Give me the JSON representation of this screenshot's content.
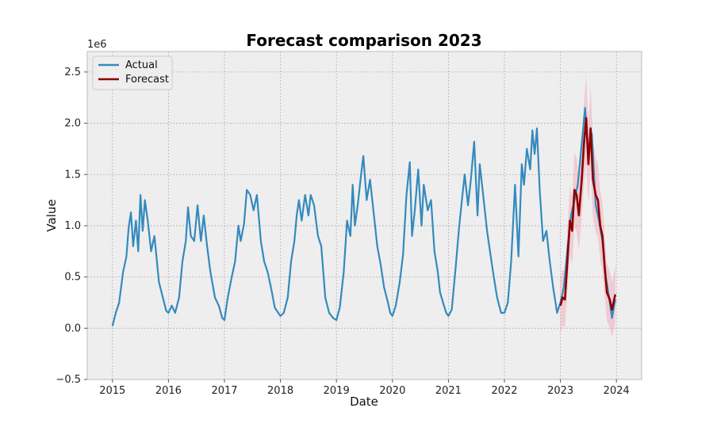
{
  "chart_data": {
    "type": "line",
    "title": "Forecast comparison 2023",
    "xlabel": "Date",
    "ylabel": "Value",
    "y_scale_label": "1e6",
    "xlim": [
      2014.55,
      2024.45
    ],
    "ylim": [
      -0.5,
      2.7
    ],
    "x_ticks": [
      2015,
      2016,
      2017,
      2018,
      2019,
      2020,
      2021,
      2022,
      2023,
      2024
    ],
    "x_tick_labels": [
      "2015",
      "2016",
      "2017",
      "2018",
      "2019",
      "2020",
      "2021",
      "2022",
      "2023",
      "2024"
    ],
    "y_ticks": [
      -0.5,
      0.0,
      0.5,
      1.0,
      1.5,
      2.0,
      2.5
    ],
    "y_tick_labels": [
      "−0.5",
      "0.0",
      "0.5",
      "1.0",
      "1.5",
      "2.0",
      "2.5"
    ],
    "grid": true,
    "legend_position": "top-left",
    "colors": {
      "actual": "#348ABD",
      "forecast": "#8B0000",
      "band": "#F4A0B4",
      "plot_bg": "#EEEEEE",
      "grid": "#B2B2B2"
    },
    "series": [
      {
        "name": "Actual",
        "points": [
          [
            2015.0,
            0.02
          ],
          [
            2015.06,
            0.15
          ],
          [
            2015.12,
            0.25
          ],
          [
            2015.19,
            0.55
          ],
          [
            2015.25,
            0.7
          ],
          [
            2015.29,
            0.98
          ],
          [
            2015.33,
            1.13
          ],
          [
            2015.37,
            0.8
          ],
          [
            2015.42,
            1.05
          ],
          [
            2015.46,
            0.75
          ],
          [
            2015.5,
            1.3
          ],
          [
            2015.54,
            0.95
          ],
          [
            2015.58,
            1.25
          ],
          [
            2015.63,
            1.05
          ],
          [
            2015.69,
            0.75
          ],
          [
            2015.75,
            0.9
          ],
          [
            2015.83,
            0.45
          ],
          [
            2015.9,
            0.3
          ],
          [
            2015.96,
            0.17
          ],
          [
            2016.0,
            0.15
          ],
          [
            2016.06,
            0.22
          ],
          [
            2016.12,
            0.15
          ],
          [
            2016.19,
            0.3
          ],
          [
            2016.25,
            0.65
          ],
          [
            2016.31,
            0.85
          ],
          [
            2016.35,
            1.18
          ],
          [
            2016.4,
            0.9
          ],
          [
            2016.46,
            0.85
          ],
          [
            2016.52,
            1.2
          ],
          [
            2016.58,
            0.85
          ],
          [
            2016.63,
            1.1
          ],
          [
            2016.69,
            0.8
          ],
          [
            2016.75,
            0.55
          ],
          [
            2016.83,
            0.3
          ],
          [
            2016.9,
            0.22
          ],
          [
            2016.96,
            0.1
          ],
          [
            2017.0,
            0.08
          ],
          [
            2017.06,
            0.3
          ],
          [
            2017.13,
            0.5
          ],
          [
            2017.19,
            0.65
          ],
          [
            2017.25,
            1.0
          ],
          [
            2017.29,
            0.85
          ],
          [
            2017.35,
            1.02
          ],
          [
            2017.4,
            1.35
          ],
          [
            2017.46,
            1.3
          ],
          [
            2017.52,
            1.15
          ],
          [
            2017.58,
            1.3
          ],
          [
            2017.65,
            0.85
          ],
          [
            2017.71,
            0.65
          ],
          [
            2017.77,
            0.55
          ],
          [
            2017.83,
            0.4
          ],
          [
            2017.9,
            0.2
          ],
          [
            2017.96,
            0.15
          ],
          [
            2018.0,
            0.12
          ],
          [
            2018.06,
            0.15
          ],
          [
            2018.13,
            0.3
          ],
          [
            2018.19,
            0.65
          ],
          [
            2018.25,
            0.85
          ],
          [
            2018.29,
            1.1
          ],
          [
            2018.33,
            1.25
          ],
          [
            2018.38,
            1.05
          ],
          [
            2018.44,
            1.3
          ],
          [
            2018.5,
            1.1
          ],
          [
            2018.54,
            1.3
          ],
          [
            2018.6,
            1.2
          ],
          [
            2018.67,
            0.9
          ],
          [
            2018.73,
            0.8
          ],
          [
            2018.8,
            0.3
          ],
          [
            2018.87,
            0.15
          ],
          [
            2018.94,
            0.1
          ],
          [
            2019.0,
            0.08
          ],
          [
            2019.06,
            0.2
          ],
          [
            2019.13,
            0.55
          ],
          [
            2019.19,
            1.05
          ],
          [
            2019.25,
            0.9
          ],
          [
            2019.29,
            1.4
          ],
          [
            2019.33,
            1.0
          ],
          [
            2019.38,
            1.2
          ],
          [
            2019.44,
            1.5
          ],
          [
            2019.48,
            1.68
          ],
          [
            2019.54,
            1.25
          ],
          [
            2019.6,
            1.45
          ],
          [
            2019.67,
            1.1
          ],
          [
            2019.73,
            0.8
          ],
          [
            2019.79,
            0.62
          ],
          [
            2019.85,
            0.4
          ],
          [
            2019.92,
            0.25
          ],
          [
            2019.96,
            0.15
          ],
          [
            2020.0,
            0.12
          ],
          [
            2020.06,
            0.22
          ],
          [
            2020.13,
            0.45
          ],
          [
            2020.19,
            0.72
          ],
          [
            2020.25,
            1.3
          ],
          [
            2020.31,
            1.62
          ],
          [
            2020.35,
            0.9
          ],
          [
            2020.4,
            1.15
          ],
          [
            2020.46,
            1.55
          ],
          [
            2020.52,
            1.0
          ],
          [
            2020.56,
            1.4
          ],
          [
            2020.63,
            1.15
          ],
          [
            2020.69,
            1.25
          ],
          [
            2020.75,
            0.75
          ],
          [
            2020.81,
            0.55
          ],
          [
            2020.85,
            0.35
          ],
          [
            2020.92,
            0.22
          ],
          [
            2020.96,
            0.15
          ],
          [
            2021.0,
            0.12
          ],
          [
            2021.06,
            0.18
          ],
          [
            2021.13,
            0.6
          ],
          [
            2021.19,
            0.98
          ],
          [
            2021.25,
            1.3
          ],
          [
            2021.29,
            1.5
          ],
          [
            2021.35,
            1.2
          ],
          [
            2021.4,
            1.45
          ],
          [
            2021.46,
            1.82
          ],
          [
            2021.52,
            1.1
          ],
          [
            2021.56,
            1.6
          ],
          [
            2021.63,
            1.25
          ],
          [
            2021.69,
            0.95
          ],
          [
            2021.75,
            0.72
          ],
          [
            2021.81,
            0.5
          ],
          [
            2021.87,
            0.3
          ],
          [
            2021.94,
            0.15
          ],
          [
            2022.0,
            0.15
          ],
          [
            2022.06,
            0.25
          ],
          [
            2022.12,
            0.65
          ],
          [
            2022.19,
            1.4
          ],
          [
            2022.25,
            0.7
          ],
          [
            2022.31,
            1.6
          ],
          [
            2022.35,
            1.4
          ],
          [
            2022.4,
            1.75
          ],
          [
            2022.46,
            1.55
          ],
          [
            2022.5,
            1.93
          ],
          [
            2022.54,
            1.7
          ],
          [
            2022.58,
            1.95
          ],
          [
            2022.63,
            1.35
          ],
          [
            2022.69,
            0.85
          ],
          [
            2022.75,
            0.95
          ],
          [
            2022.81,
            0.65
          ],
          [
            2022.87,
            0.4
          ],
          [
            2022.94,
            0.15
          ],
          [
            2023.0,
            0.25
          ],
          [
            2023.06,
            0.4
          ],
          [
            2023.13,
            0.8
          ],
          [
            2023.19,
            1.1
          ],
          [
            2023.25,
            1.25
          ],
          [
            2023.31,
            1.4
          ],
          [
            2023.38,
            1.8
          ],
          [
            2023.44,
            2.15
          ],
          [
            2023.5,
            1.7
          ],
          [
            2023.56,
            1.9
          ],
          [
            2023.63,
            1.2
          ],
          [
            2023.69,
            1.05
          ],
          [
            2023.75,
            0.85
          ],
          [
            2023.81,
            0.5
          ],
          [
            2023.87,
            0.3
          ],
          [
            2023.92,
            0.1
          ],
          [
            2023.98,
            0.28
          ]
        ]
      },
      {
        "name": "Forecast",
        "points": [
          [
            2023.0,
            0.22
          ],
          [
            2023.04,
            0.3
          ],
          [
            2023.08,
            0.28
          ],
          [
            2023.13,
            0.7
          ],
          [
            2023.17,
            1.05
          ],
          [
            2023.21,
            0.95
          ],
          [
            2023.25,
            1.35
          ],
          [
            2023.29,
            1.3
          ],
          [
            2023.33,
            1.1
          ],
          [
            2023.38,
            1.45
          ],
          [
            2023.42,
            1.8
          ],
          [
            2023.46,
            2.05
          ],
          [
            2023.5,
            1.6
          ],
          [
            2023.54,
            1.95
          ],
          [
            2023.58,
            1.45
          ],
          [
            2023.63,
            1.3
          ],
          [
            2023.67,
            1.25
          ],
          [
            2023.71,
            1.0
          ],
          [
            2023.75,
            0.9
          ],
          [
            2023.79,
            0.6
          ],
          [
            2023.83,
            0.35
          ],
          [
            2023.88,
            0.28
          ],
          [
            2023.92,
            0.18
          ],
          [
            2023.98,
            0.33
          ]
        ]
      }
    ],
    "band_halfwidth": 0.42
  }
}
